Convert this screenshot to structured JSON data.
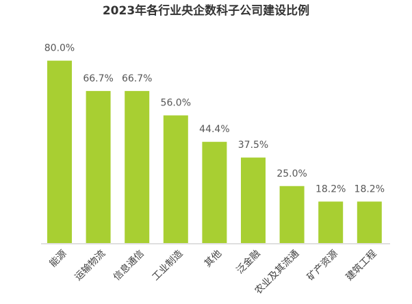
{
  "chart_data": {
    "type": "bar",
    "title": "2023年各行业央企数科子公司建设比例",
    "categories": [
      "能源",
      "运输物流",
      "信息通信",
      "工业制造",
      "其他",
      "泛金融",
      "农业及其流通",
      "矿产资源",
      "建筑工程"
    ],
    "values": [
      80.0,
      66.7,
      66.7,
      56.0,
      44.4,
      37.5,
      25.0,
      18.2,
      18.2
    ],
    "value_labels": [
      "80.0%",
      "66.7%",
      "66.7%",
      "56.0%",
      "44.4%",
      "37.5%",
      "25.0%",
      "18.2%",
      "18.2%"
    ],
    "color": "#a8cf32"
  }
}
